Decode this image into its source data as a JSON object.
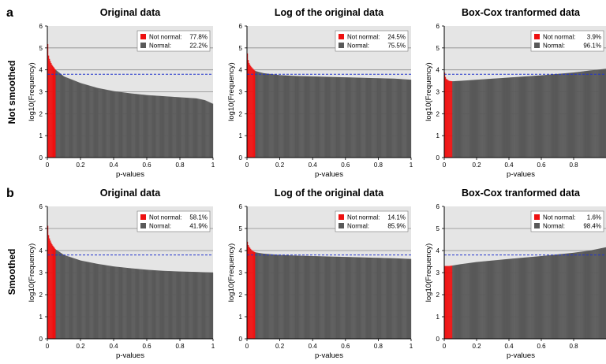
{
  "figure": {
    "row_letters": [
      "a",
      "b"
    ],
    "row_labels": [
      "Not smoothed",
      "Smoothed"
    ]
  },
  "chart_data": [
    {
      "type": "bar",
      "title": "Original data",
      "xlabel": "p-values",
      "ylabel": "log10(Frequency)",
      "xlim": [
        0,
        1
      ],
      "ylim": [
        0,
        6
      ],
      "x_ticks": [
        "0",
        "0.2",
        "0.4",
        "0.6",
        "0.8",
        "1"
      ],
      "y_ticks": [
        "0",
        "1",
        "2",
        "3",
        "4",
        "5",
        "6"
      ],
      "reference_line": 3.8,
      "significance_cutoff": 0.05,
      "curve": [
        [
          0,
          5.6
        ],
        [
          0.005,
          4.75
        ],
        [
          0.01,
          4.55
        ],
        [
          0.02,
          4.35
        ],
        [
          0.03,
          4.2
        ],
        [
          0.05,
          4.0
        ],
        [
          0.1,
          3.7
        ],
        [
          0.2,
          3.4
        ],
        [
          0.3,
          3.18
        ],
        [
          0.4,
          3.03
        ],
        [
          0.5,
          2.93
        ],
        [
          0.6,
          2.85
        ],
        [
          0.7,
          2.8
        ],
        [
          0.8,
          2.75
        ],
        [
          0.9,
          2.7
        ],
        [
          0.95,
          2.62
        ],
        [
          1.0,
          2.45
        ]
      ],
      "legend": [
        {
          "label": "Not normal:",
          "value": "77.8%",
          "color": "#ee1111"
        },
        {
          "label": "Normal:",
          "value": "22.2%",
          "color": "#595959"
        }
      ]
    },
    {
      "type": "bar",
      "title": "Log of the original data",
      "xlabel": "p-values",
      "ylabel": "log10(Frequency)",
      "xlim": [
        0,
        1
      ],
      "ylim": [
        0,
        6
      ],
      "x_ticks": [
        "0",
        "0.2",
        "0.4",
        "0.6",
        "0.8",
        "1"
      ],
      "y_ticks": [
        "0",
        "1",
        "2",
        "3",
        "4",
        "5",
        "6"
      ],
      "reference_line": 3.8,
      "significance_cutoff": 0.05,
      "curve": [
        [
          0,
          4.95
        ],
        [
          0.005,
          4.55
        ],
        [
          0.01,
          4.35
        ],
        [
          0.02,
          4.2
        ],
        [
          0.03,
          4.1
        ],
        [
          0.05,
          3.95
        ],
        [
          0.1,
          3.85
        ],
        [
          0.2,
          3.76
        ],
        [
          0.3,
          3.72
        ],
        [
          0.4,
          3.7
        ],
        [
          0.5,
          3.68
        ],
        [
          0.6,
          3.66
        ],
        [
          0.7,
          3.64
        ],
        [
          0.8,
          3.62
        ],
        [
          0.9,
          3.6
        ],
        [
          1.0,
          3.55
        ]
      ],
      "legend": [
        {
          "label": "Not normal:",
          "value": "24.5%",
          "color": "#ee1111"
        },
        {
          "label": "Normal:",
          "value": "75.5%",
          "color": "#595959"
        }
      ]
    },
    {
      "type": "bar",
      "title": "Box-Cox tranformed data",
      "xlabel": "p-values",
      "ylabel": "log10(Frequency)",
      "xlim": [
        0,
        1
      ],
      "ylim": [
        0,
        6
      ],
      "x_ticks": [
        "0",
        "0.2",
        "0.4",
        "0.6",
        "0.8"
      ],
      "y_ticks": [
        "0",
        "1",
        "2",
        "3",
        "4",
        "5",
        "6"
      ],
      "reference_line": 3.8,
      "significance_cutoff": 0.05,
      "curve": [
        [
          0,
          4.0
        ],
        [
          0.005,
          3.75
        ],
        [
          0.01,
          3.6
        ],
        [
          0.03,
          3.5
        ],
        [
          0.05,
          3.48
        ],
        [
          0.1,
          3.5
        ],
        [
          0.2,
          3.55
        ],
        [
          0.4,
          3.65
        ],
        [
          0.6,
          3.75
        ],
        [
          0.8,
          3.88
        ],
        [
          0.9,
          3.97
        ],
        [
          1.0,
          4.05
        ]
      ],
      "legend": [
        {
          "label": "Not normal:",
          "value": "3.9%",
          "color": "#ee1111"
        },
        {
          "label": "Normal:",
          "value": "96.1%",
          "color": "#595959"
        }
      ]
    },
    {
      "type": "bar",
      "title": "Original data",
      "xlabel": "p-values",
      "ylabel": "log10(Frequency)",
      "xlim": [
        0,
        1
      ],
      "ylim": [
        0,
        6
      ],
      "x_ticks": [
        "0",
        "0.2",
        "0.4",
        "0.6",
        "0.8",
        "1"
      ],
      "y_ticks": [
        "0",
        "1",
        "2",
        "3",
        "4",
        "5",
        "6"
      ],
      "reference_line": 3.8,
      "significance_cutoff": 0.05,
      "curve": [
        [
          0,
          5.45
        ],
        [
          0.005,
          4.8
        ],
        [
          0.01,
          4.6
        ],
        [
          0.02,
          4.4
        ],
        [
          0.03,
          4.25
        ],
        [
          0.05,
          4.05
        ],
        [
          0.1,
          3.8
        ],
        [
          0.2,
          3.55
        ],
        [
          0.3,
          3.4
        ],
        [
          0.4,
          3.28
        ],
        [
          0.5,
          3.2
        ],
        [
          0.6,
          3.13
        ],
        [
          0.7,
          3.08
        ],
        [
          0.8,
          3.05
        ],
        [
          0.9,
          3.03
        ],
        [
          1.0,
          3.0
        ]
      ],
      "legend": [
        {
          "label": "Not normal:",
          "value": "58.1%",
          "color": "#ee1111"
        },
        {
          "label": "Normal:",
          "value": "41.9%",
          "color": "#595959"
        }
      ]
    },
    {
      "type": "bar",
      "title": "Log of the original data",
      "xlabel": "p-values",
      "ylabel": "log10(Frequency)",
      "xlim": [
        0,
        1
      ],
      "ylim": [
        0,
        6
      ],
      "x_ticks": [
        "0",
        "0.2",
        "0.4",
        "0.6",
        "0.8",
        "1"
      ],
      "y_ticks": [
        "0",
        "1",
        "2",
        "3",
        "4",
        "5",
        "6"
      ],
      "reference_line": 3.8,
      "significance_cutoff": 0.05,
      "curve": [
        [
          0,
          4.5
        ],
        [
          0.005,
          4.3
        ],
        [
          0.01,
          4.2
        ],
        [
          0.02,
          4.1
        ],
        [
          0.03,
          4.0
        ],
        [
          0.05,
          3.92
        ],
        [
          0.1,
          3.86
        ],
        [
          0.2,
          3.8
        ],
        [
          0.3,
          3.77
        ],
        [
          0.4,
          3.75
        ],
        [
          0.5,
          3.73
        ],
        [
          0.6,
          3.71
        ],
        [
          0.7,
          3.69
        ],
        [
          0.8,
          3.67
        ],
        [
          0.9,
          3.65
        ],
        [
          1.0,
          3.62
        ]
      ],
      "legend": [
        {
          "label": "Not normal:",
          "value": "14.1%",
          "color": "#ee1111"
        },
        {
          "label": "Normal:",
          "value": "85.9%",
          "color": "#595959"
        }
      ]
    },
    {
      "type": "bar",
      "title": "Box-Cox tranformed data",
      "xlabel": "p-values",
      "ylabel": "log10(Frequency)",
      "xlim": [
        0,
        1
      ],
      "ylim": [
        0,
        6
      ],
      "x_ticks": [
        "0",
        "0.2",
        "0.4",
        "0.6",
        "0.8"
      ],
      "y_ticks": [
        "0",
        "1",
        "2",
        "3",
        "4",
        "5",
        "6"
      ],
      "reference_line": 3.8,
      "significance_cutoff": 0.05,
      "curve": [
        [
          0,
          3.3
        ],
        [
          0.01,
          3.3
        ],
        [
          0.03,
          3.3
        ],
        [
          0.05,
          3.32
        ],
        [
          0.1,
          3.38
        ],
        [
          0.2,
          3.48
        ],
        [
          0.4,
          3.62
        ],
        [
          0.6,
          3.75
        ],
        [
          0.8,
          3.9
        ],
        [
          0.9,
          4.0
        ],
        [
          1.0,
          4.15
        ]
      ],
      "legend": [
        {
          "label": "Not normal:",
          "value": "1.6%",
          "color": "#ee1111"
        },
        {
          "label": "Normal:",
          "value": "98.4%",
          "color": "#595959"
        }
      ]
    }
  ]
}
